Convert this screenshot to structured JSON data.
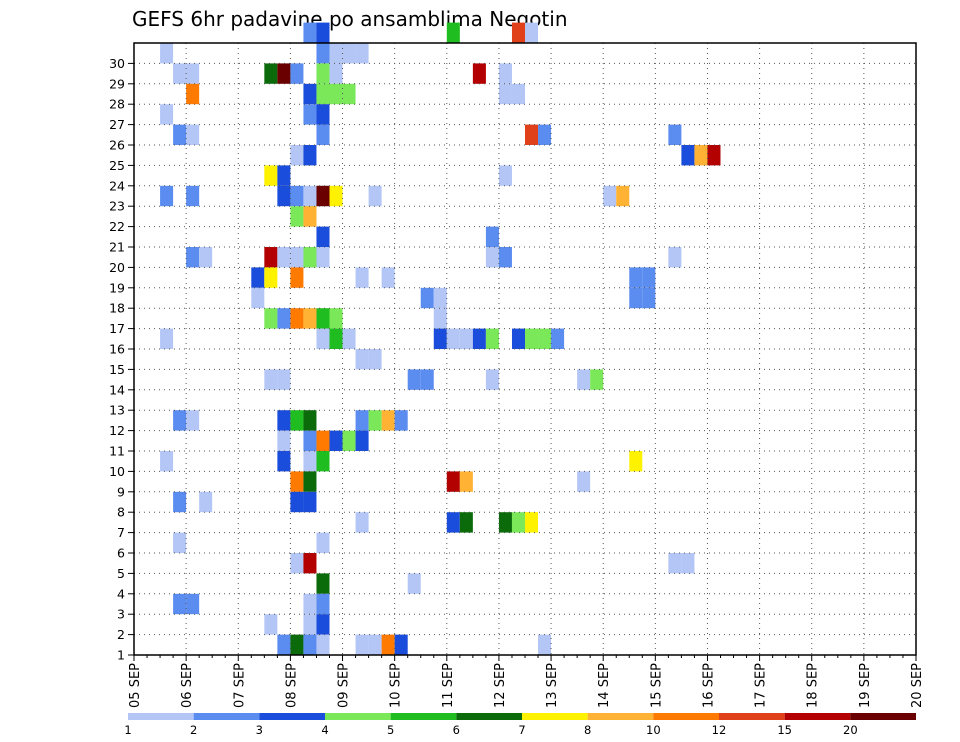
{
  "chart_data": {
    "type": "heatmap",
    "title": "GEFS 6hr padavine po ansamblima Negotin",
    "xlabel": "",
    "ylabel": "",
    "x_ticks": [
      "05 SEP",
      "06 SEP",
      "07 SEP",
      "08 SEP",
      "09 SEP",
      "10 SEP",
      "11 SEP",
      "12 SEP",
      "13 SEP",
      "14 SEP",
      "15 SEP",
      "16 SEP",
      "17 SEP",
      "18 SEP",
      "19 SEP",
      "20 SEP"
    ],
    "x_range": [
      "05 SEP 00Z",
      "20 SEP 00Z"
    ],
    "x_step_hours": 6,
    "y_ticks": [
      "1",
      "2",
      "3",
      "4",
      "5",
      "6",
      "7",
      "8",
      "9",
      "10",
      "11",
      "12",
      "13",
      "14",
      "15",
      "16",
      "17",
      "18",
      "19",
      "20",
      "21",
      "22",
      "23",
      "24",
      "25",
      "26",
      "27",
      "28",
      "29",
      "30"
    ],
    "y_range": [
      0,
      30
    ],
    "grid": true,
    "legend": {
      "placement": "bottom",
      "labels": [
        "1",
        "2",
        "3",
        "4",
        "5",
        "6",
        "7",
        "8",
        "10",
        "12",
        "15",
        "20"
      ],
      "colors": [
        "#b3c6f5",
        "#5b8cf0",
        "#1a4ddb",
        "#7be85a",
        "#1fbd1f",
        "#0b6b0b",
        "#fff200",
        "#ffb233",
        "#ff7a00",
        "#e0401a",
        "#b30000",
        "#6b0000"
      ]
    },
    "cells": [
      [
        30,
        13,
        2
      ],
      [
        30,
        14,
        3
      ],
      [
        30,
        24,
        5
      ],
      [
        30,
        29,
        10
      ],
      [
        30,
        30,
        1
      ],
      [
        29,
        2,
        1
      ],
      [
        29,
        14,
        2
      ],
      [
        29,
        15,
        1
      ],
      [
        29,
        16,
        1
      ],
      [
        29,
        17,
        1
      ],
      [
        28,
        3,
        1
      ],
      [
        28,
        4,
        1
      ],
      [
        28,
        10,
        6
      ],
      [
        28,
        11,
        12
      ],
      [
        28,
        12,
        2
      ],
      [
        28,
        14,
        1
      ],
      [
        28,
        14,
        4
      ],
      [
        28,
        15,
        1
      ],
      [
        28,
        26,
        11
      ],
      [
        28,
        28,
        1
      ],
      [
        27,
        4,
        9
      ],
      [
        27,
        13,
        3
      ],
      [
        27,
        14,
        4
      ],
      [
        27,
        15,
        4
      ],
      [
        27,
        16,
        4
      ],
      [
        27,
        28,
        1
      ],
      [
        27,
        29,
        1
      ],
      [
        26,
        2,
        1
      ],
      [
        26,
        13,
        2
      ],
      [
        26,
        14,
        3
      ],
      [
        25,
        3,
        2
      ],
      [
        25,
        4,
        1
      ],
      [
        25,
        14,
        2
      ],
      [
        25,
        30,
        10
      ],
      [
        25,
        31,
        2
      ],
      [
        25,
        41,
        2
      ],
      [
        24,
        12,
        1
      ],
      [
        24,
        13,
        3
      ],
      [
        24,
        42,
        3
      ],
      [
        24,
        43,
        8
      ],
      [
        24,
        44,
        11
      ],
      [
        23,
        28,
        1
      ],
      [
        23,
        10,
        7
      ],
      [
        23,
        11,
        3
      ],
      [
        22,
        2,
        2
      ],
      [
        22,
        4,
        2
      ],
      [
        22,
        11,
        3
      ],
      [
        22,
        12,
        2
      ],
      [
        22,
        13,
        1
      ],
      [
        22,
        14,
        1
      ],
      [
        22,
        14,
        12
      ],
      [
        22,
        15,
        7
      ],
      [
        22,
        18,
        1
      ],
      [
        22,
        36,
        1
      ],
      [
        22,
        37,
        8
      ],
      [
        21,
        12,
        4
      ],
      [
        21,
        13,
        4
      ],
      [
        21,
        13,
        8
      ],
      [
        20,
        14,
        3
      ],
      [
        20,
        27,
        2
      ],
      [
        19,
        4,
        2
      ],
      [
        19,
        5,
        1
      ],
      [
        19,
        10,
        11
      ],
      [
        19,
        11,
        1
      ],
      [
        19,
        12,
        1
      ],
      [
        19,
        13,
        2
      ],
      [
        19,
        13,
        4
      ],
      [
        19,
        14,
        1
      ],
      [
        19,
        27,
        1
      ],
      [
        19,
        28,
        2
      ],
      [
        19,
        41,
        1
      ],
      [
        18,
        9,
        3
      ],
      [
        18,
        10,
        7
      ],
      [
        18,
        12,
        9
      ],
      [
        18,
        17,
        1
      ],
      [
        18,
        19,
        1
      ],
      [
        18,
        38,
        2
      ],
      [
        18,
        39,
        2
      ],
      [
        17,
        9,
        1
      ],
      [
        17,
        22,
        2
      ],
      [
        17,
        23,
        1
      ],
      [
        17,
        38,
        2
      ],
      [
        17,
        39,
        2
      ],
      [
        16,
        10,
        4
      ],
      [
        16,
        11,
        2
      ],
      [
        16,
        12,
        9
      ],
      [
        16,
        13,
        8
      ],
      [
        16,
        14,
        5
      ],
      [
        16,
        15,
        4
      ],
      [
        16,
        23,
        1
      ],
      [
        15,
        2,
        1
      ],
      [
        15,
        14,
        1
      ],
      [
        15,
        15,
        5
      ],
      [
        15,
        16,
        1
      ],
      [
        15,
        23,
        3
      ],
      [
        15,
        24,
        1
      ],
      [
        15,
        25,
        1
      ],
      [
        15,
        26,
        3
      ],
      [
        15,
        27,
        4
      ],
      [
        15,
        29,
        3
      ],
      [
        15,
        30,
        4
      ],
      [
        15,
        31,
        4
      ],
      [
        15,
        32,
        2
      ],
      [
        14,
        17,
        1
      ],
      [
        14,
        18,
        1
      ],
      [
        13,
        10,
        1
      ],
      [
        13,
        11,
        1
      ],
      [
        13,
        21,
        2
      ],
      [
        13,
        22,
        2
      ],
      [
        13,
        27,
        1
      ],
      [
        13,
        34,
        1
      ],
      [
        13,
        35,
        4
      ],
      [
        11,
        3,
        2
      ],
      [
        11,
        4,
        1
      ],
      [
        11,
        11,
        3
      ],
      [
        11,
        12,
        5
      ],
      [
        11,
        13,
        6
      ],
      [
        11,
        17,
        2
      ],
      [
        11,
        18,
        4
      ],
      [
        11,
        19,
        8
      ],
      [
        11,
        20,
        2
      ],
      [
        10,
        11,
        1
      ],
      [
        10,
        13,
        2
      ],
      [
        10,
        14,
        9
      ],
      [
        10,
        15,
        3
      ],
      [
        10,
        16,
        4
      ],
      [
        10,
        17,
        3
      ],
      [
        9,
        2,
        1
      ],
      [
        9,
        11,
        3
      ],
      [
        9,
        13,
        1
      ],
      [
        9,
        14,
        5
      ],
      [
        9,
        38,
        7
      ],
      [
        8,
        12,
        9
      ],
      [
        8,
        13,
        6
      ],
      [
        8,
        24,
        11
      ],
      [
        8,
        25,
        8
      ],
      [
        8,
        34,
        1
      ],
      [
        7,
        3,
        2
      ],
      [
        7,
        5,
        1
      ],
      [
        7,
        12,
        3
      ],
      [
        7,
        13,
        3
      ],
      [
        6,
        17,
        1
      ],
      [
        6,
        24,
        3
      ],
      [
        6,
        25,
        6
      ],
      [
        6,
        28,
        6
      ],
      [
        6,
        29,
        4
      ],
      [
        6,
        30,
        7
      ],
      [
        5,
        3,
        1
      ],
      [
        5,
        14,
        1
      ],
      [
        4,
        12,
        1
      ],
      [
        4,
        13,
        11
      ],
      [
        4,
        41,
        1
      ],
      [
        4,
        42,
        1
      ],
      [
        3,
        14,
        6
      ],
      [
        3,
        21,
        1
      ],
      [
        2,
        3,
        2
      ],
      [
        2,
        4,
        2
      ],
      [
        2,
        13,
        1
      ],
      [
        2,
        14,
        2
      ],
      [
        1,
        10,
        1
      ],
      [
        1,
        13,
        1
      ],
      [
        1,
        14,
        3
      ],
      [
        0,
        11,
        2
      ],
      [
        0,
        12,
        6
      ],
      [
        0,
        13,
        2
      ],
      [
        0,
        14,
        1
      ],
      [
        0,
        17,
        1
      ],
      [
        0,
        18,
        1
      ],
      [
        0,
        19,
        9
      ],
      [
        0,
        20,
        3
      ],
      [
        0,
        31,
        1
      ]
    ]
  }
}
